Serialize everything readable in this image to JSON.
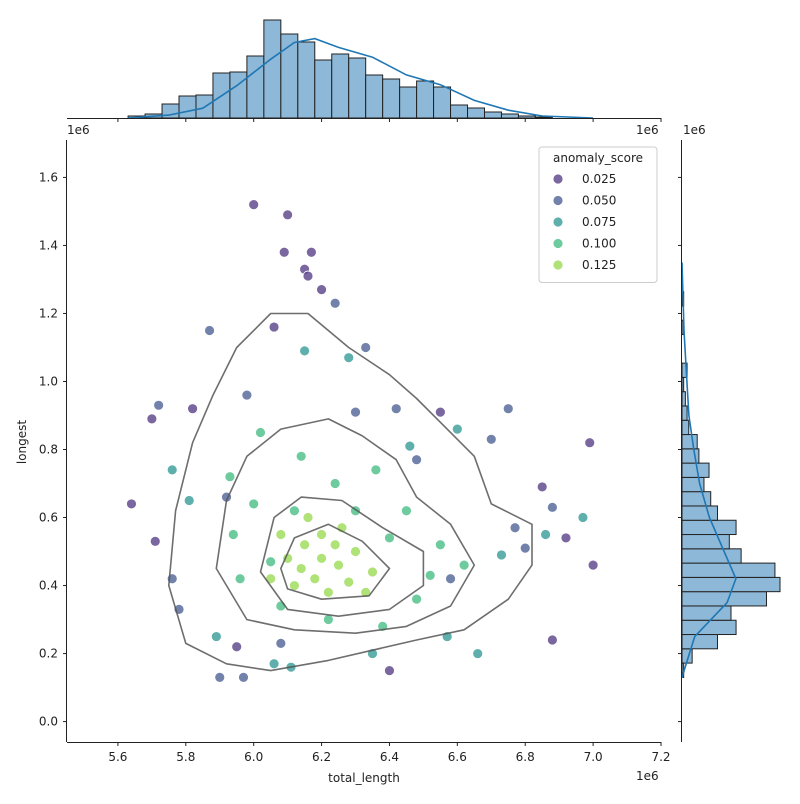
{
  "chart_data": {
    "type": "scatter",
    "title": "",
    "xlabel": "total_length",
    "ylabel": "longest",
    "x_offset_label": "1e6",
    "y_offset_label": "1e6",
    "xlim": [
      5.45,
      7.2
    ],
    "ylim": [
      -0.06,
      1.71
    ],
    "x_ticks": [
      "5.6",
      "5.8",
      "6.0",
      "6.2",
      "6.4",
      "6.6",
      "6.8",
      "7.0",
      "7.2"
    ],
    "y_ticks": [
      "0.0",
      "0.2",
      "0.4",
      "0.6",
      "0.8",
      "1.0",
      "1.2",
      "1.4",
      "1.6"
    ],
    "x_tick_values": [
      5.6,
      5.8,
      6.0,
      6.2,
      6.4,
      6.6,
      6.8,
      7.0,
      7.2
    ],
    "y_tick_values": [
      0.0,
      0.2,
      0.4,
      0.6,
      0.8,
      1.0,
      1.2,
      1.4,
      1.6
    ],
    "grid": false,
    "legend": {
      "title": "anomaly_score",
      "placement": "top-right",
      "entries": [
        {
          "label": "0.025",
          "color": "#472d7b"
        },
        {
          "label": "0.050",
          "color": "#3b528b"
        },
        {
          "label": "0.075",
          "color": "#21918c"
        },
        {
          "label": "0.100",
          "color": "#35b779"
        },
        {
          "label": "0.125",
          "color": "#90d743"
        }
      ]
    },
    "kde_contours": [
      {
        "level": "outer",
        "points": [
          [
            5.75,
            0.4
          ],
          [
            5.77,
            0.62
          ],
          [
            5.82,
            0.82
          ],
          [
            5.88,
            0.96
          ],
          [
            5.95,
            1.1
          ],
          [
            6.05,
            1.2
          ],
          [
            6.16,
            1.2
          ],
          [
            6.28,
            1.1
          ],
          [
            6.4,
            1.02
          ],
          [
            6.48,
            0.95
          ],
          [
            6.55,
            0.88
          ],
          [
            6.65,
            0.78
          ],
          [
            6.7,
            0.64
          ],
          [
            6.82,
            0.58
          ],
          [
            6.82,
            0.46
          ],
          [
            6.75,
            0.36
          ],
          [
            6.62,
            0.27
          ],
          [
            6.48,
            0.24
          ],
          [
            6.35,
            0.21
          ],
          [
            6.22,
            0.18
          ],
          [
            6.05,
            0.15
          ],
          [
            5.92,
            0.17
          ],
          [
            5.8,
            0.23
          ]
        ]
      },
      {
        "level": "middle",
        "points": [
          [
            5.89,
            0.45
          ],
          [
            5.92,
            0.65
          ],
          [
            5.98,
            0.78
          ],
          [
            6.08,
            0.86
          ],
          [
            6.22,
            0.89
          ],
          [
            6.32,
            0.84
          ],
          [
            6.42,
            0.77
          ],
          [
            6.48,
            0.66
          ],
          [
            6.58,
            0.58
          ],
          [
            6.65,
            0.46
          ],
          [
            6.58,
            0.34
          ],
          [
            6.45,
            0.28
          ],
          [
            6.3,
            0.26
          ],
          [
            6.12,
            0.27
          ],
          [
            5.98,
            0.3
          ]
        ]
      },
      {
        "level": "inner",
        "points": [
          [
            6.02,
            0.44
          ],
          [
            6.06,
            0.6
          ],
          [
            6.14,
            0.66
          ],
          [
            6.26,
            0.65
          ],
          [
            6.38,
            0.57
          ],
          [
            6.5,
            0.5
          ],
          [
            6.5,
            0.4
          ],
          [
            6.4,
            0.33
          ],
          [
            6.25,
            0.31
          ],
          [
            6.1,
            0.33
          ]
        ]
      },
      {
        "level": "core",
        "points": [
          [
            6.08,
            0.45
          ],
          [
            6.12,
            0.54
          ],
          [
            6.22,
            0.58
          ],
          [
            6.32,
            0.53
          ],
          [
            6.4,
            0.45
          ],
          [
            6.34,
            0.37
          ],
          [
            6.2,
            0.36
          ],
          [
            6.1,
            0.39
          ]
        ]
      }
    ],
    "x_kde_curve": [
      [
        5.63,
        0.0
      ],
      [
        5.75,
        0.03
      ],
      [
        5.85,
        0.1
      ],
      [
        5.95,
        0.33
      ],
      [
        6.05,
        0.6
      ],
      [
        6.12,
        0.77
      ],
      [
        6.18,
        0.81
      ],
      [
        6.25,
        0.72
      ],
      [
        6.35,
        0.62
      ],
      [
        6.45,
        0.44
      ],
      [
        6.55,
        0.34
      ],
      [
        6.65,
        0.18
      ],
      [
        6.75,
        0.08
      ],
      [
        6.85,
        0.02
      ],
      [
        7.0,
        0.0
      ]
    ],
    "x_histogram": {
      "bin_start": 5.63,
      "bin_width": 0.05,
      "counts": [
        2,
        4,
        14,
        22,
        23,
        45,
        46,
        62,
        98,
        84,
        76,
        58,
        64,
        60,
        43,
        39,
        31,
        37,
        31,
        13,
        10,
        6,
        4,
        2,
        1
      ]
    },
    "y_kde_curve": [
      [
        0.13,
        0.0
      ],
      [
        0.25,
        0.13
      ],
      [
        0.35,
        0.46
      ],
      [
        0.42,
        0.55
      ],
      [
        0.5,
        0.43
      ],
      [
        0.6,
        0.28
      ],
      [
        0.7,
        0.18
      ],
      [
        0.8,
        0.12
      ],
      [
        0.9,
        0.07
      ],
      [
        1.0,
        0.05
      ],
      [
        1.15,
        0.02
      ],
      [
        1.35,
        0.0
      ]
    ],
    "y_histogram": {
      "bin_start": 0.13,
      "bin_width": 0.042,
      "counts": [
        1,
        6,
        21,
        32,
        29,
        50,
        58,
        55,
        35,
        28,
        32,
        21,
        17,
        13,
        16,
        10,
        9,
        4,
        3,
        2,
        1,
        3,
        0,
        0,
        1,
        0,
        1
      ]
    },
    "series": [
      {
        "name": "0.025",
        "points": [
          [
            6.0,
            1.52
          ],
          [
            6.09,
            1.38
          ],
          [
            6.17,
            1.38
          ],
          [
            6.15,
            1.33
          ],
          [
            6.1,
            1.49
          ],
          [
            5.64,
            0.64
          ],
          [
            5.71,
            0.53
          ],
          [
            6.92,
            0.54
          ],
          [
            6.99,
            0.82
          ],
          [
            7.0,
            0.46
          ],
          [
            6.88,
            0.24
          ],
          [
            6.16,
            1.31
          ],
          [
            6.2,
            1.27
          ],
          [
            5.82,
            0.92
          ],
          [
            6.06,
            1.16
          ],
          [
            5.7,
            0.89
          ],
          [
            5.95,
            0.22
          ],
          [
            6.85,
            0.69
          ],
          [
            6.55,
            0.91
          ],
          [
            6.4,
            0.15
          ]
        ]
      },
      {
        "name": "0.050",
        "points": [
          [
            5.72,
            0.93
          ],
          [
            5.87,
            1.15
          ],
          [
            6.24,
            1.23
          ],
          [
            5.78,
            0.33
          ],
          [
            5.98,
            0.96
          ],
          [
            6.7,
            0.83
          ],
          [
            6.75,
            0.92
          ],
          [
            6.33,
            1.1
          ],
          [
            6.42,
            0.92
          ],
          [
            6.88,
            0.63
          ],
          [
            6.77,
            0.57
          ],
          [
            5.76,
            0.42
          ],
          [
            5.92,
            0.66
          ],
          [
            6.58,
            0.42
          ],
          [
            6.48,
            0.77
          ],
          [
            6.3,
            0.91
          ],
          [
            6.08,
            0.23
          ],
          [
            5.9,
            0.13
          ],
          [
            5.97,
            0.13
          ],
          [
            6.8,
            0.51
          ]
        ]
      },
      {
        "name": "0.075",
        "points": [
          [
            5.76,
            0.74
          ],
          [
            5.89,
            0.25
          ],
          [
            6.06,
            0.17
          ],
          [
            6.11,
            0.16
          ],
          [
            6.35,
            0.2
          ],
          [
            6.57,
            0.25
          ],
          [
            6.66,
            0.2
          ],
          [
            6.97,
            0.6
          ],
          [
            6.86,
            0.55
          ],
          [
            5.81,
            0.65
          ],
          [
            6.15,
            1.09
          ],
          [
            6.28,
            1.07
          ],
          [
            6.46,
            0.81
          ],
          [
            6.6,
            0.86
          ],
          [
            6.73,
            0.49
          ]
        ]
      },
      {
        "name": "0.100",
        "points": [
          [
            5.93,
            0.72
          ],
          [
            6.02,
            0.85
          ],
          [
            6.14,
            0.78
          ],
          [
            6.24,
            0.7
          ],
          [
            6.36,
            0.74
          ],
          [
            6.45,
            0.62
          ],
          [
            6.55,
            0.52
          ],
          [
            6.62,
            0.46
          ],
          [
            6.48,
            0.36
          ],
          [
            6.38,
            0.28
          ],
          [
            6.22,
            0.3
          ],
          [
            6.08,
            0.34
          ],
          [
            5.96,
            0.42
          ],
          [
            5.94,
            0.55
          ],
          [
            6.0,
            0.64
          ],
          [
            6.12,
            0.62
          ],
          [
            6.3,
            0.62
          ],
          [
            6.4,
            0.54
          ],
          [
            6.52,
            0.43
          ],
          [
            6.05,
            0.47
          ]
        ]
      },
      {
        "name": "0.125",
        "points": [
          [
            6.1,
            0.48
          ],
          [
            6.15,
            0.52
          ],
          [
            6.2,
            0.55
          ],
          [
            6.25,
            0.46
          ],
          [
            6.3,
            0.5
          ],
          [
            6.18,
            0.42
          ],
          [
            6.12,
            0.4
          ],
          [
            6.22,
            0.38
          ],
          [
            6.28,
            0.41
          ],
          [
            6.35,
            0.44
          ],
          [
            6.08,
            0.55
          ],
          [
            6.16,
            0.6
          ],
          [
            6.26,
            0.57
          ],
          [
            6.33,
            0.38
          ],
          [
            6.05,
            0.42
          ],
          [
            6.2,
            0.48
          ],
          [
            6.14,
            0.45
          ],
          [
            6.24,
            0.52
          ]
        ]
      }
    ]
  }
}
